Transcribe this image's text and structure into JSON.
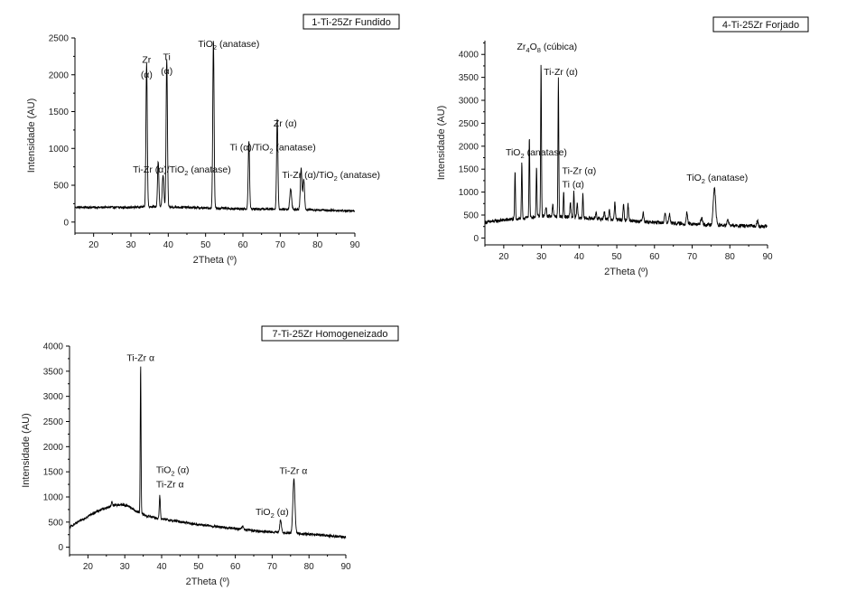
{
  "chart_data": [
    {
      "type": "line",
      "title": "1-Ti-25Zr Fundido",
      "xlabel": "2Theta (º)",
      "ylabel": "Intensidade (AU)",
      "xlim": [
        15,
        90
      ],
      "ylim": [
        -150,
        2500
      ],
      "xticks": [
        20,
        30,
        40,
        50,
        60,
        70,
        80,
        90
      ],
      "yticks": [
        0,
        500,
        1000,
        1500,
        2000,
        2500
      ],
      "baseline": [
        [
          15,
          200
        ],
        [
          30,
          200
        ],
        [
          35,
          210
        ],
        [
          40,
          205
        ],
        [
          45,
          200
        ],
        [
          50,
          190
        ],
        [
          55,
          185
        ],
        [
          60,
          180
        ],
        [
          70,
          175
        ],
        [
          80,
          165
        ],
        [
          90,
          150
        ]
      ],
      "noise": 15,
      "peaks": [
        {
          "x": 34.2,
          "y": 1950,
          "w": 0.25
        },
        {
          "x": 37.3,
          "y": 620,
          "w": 0.25
        },
        {
          "x": 38.6,
          "y": 440,
          "w": 0.3
        },
        {
          "x": 39.6,
          "y": 2010,
          "w": 0.25
        },
        {
          "x": 52.1,
          "y": 2290,
          "w": 0.25
        },
        {
          "x": 61.6,
          "y": 920,
          "w": 0.25
        },
        {
          "x": 69.2,
          "y": 1230,
          "w": 0.25
        },
        {
          "x": 72.8,
          "y": 270,
          "w": 0.35
        },
        {
          "x": 75.6,
          "y": 560,
          "w": 0.3
        },
        {
          "x": 76.3,
          "y": 420,
          "w": 0.3
        }
      ],
      "annotations": [
        {
          "text": "Zr",
          "x": 34.2,
          "y": 2160,
          "anchor": "middle"
        },
        {
          "text": "(α)",
          "x": 34.2,
          "y": 1960,
          "anchor": "middle"
        },
        {
          "text": "Ti",
          "x": 39.6,
          "y": 2200,
          "anchor": "middle"
        },
        {
          "text": "(α)",
          "x": 39.6,
          "y": 2010,
          "anchor": "middle"
        },
        {
          "text": "TiO",
          "sub": "2",
          "rest": " (anatase)",
          "x": 48,
          "y": 2380,
          "anchor": "start"
        },
        {
          "text": "Zr (α)",
          "x": 68.2,
          "y": 1300,
          "anchor": "start"
        },
        {
          "text": "Ti (α)/TiO",
          "sub": "2",
          "rest": " (anatase)",
          "x": 56.5,
          "y": 970,
          "anchor": "start"
        },
        {
          "text": "Ti-Zr (α)/TiO",
          "sub": "2",
          "rest": " (anatase)",
          "x": 30.5,
          "y": 670,
          "anchor": "start"
        },
        {
          "text": "Ti-Zr (α)/TiO",
          "sub": "2",
          "rest": " (anatase)",
          "x": 70.5,
          "y": 600,
          "anchor": "start"
        }
      ]
    },
    {
      "type": "line",
      "title": "4-Ti-25Zr Forjado",
      "xlabel": "2Theta (º)",
      "ylabel": "Intensidade (AU)",
      "xlim": [
        15,
        90
      ],
      "ylim": [
        -150,
        4300
      ],
      "xticks": [
        20,
        30,
        40,
        50,
        60,
        70,
        80,
        90
      ],
      "yticks": [
        0,
        500,
        1000,
        1500,
        2000,
        2500,
        3000,
        3500,
        4000
      ],
      "baseline": [
        [
          15,
          340
        ],
        [
          20,
          390
        ],
        [
          25,
          430
        ],
        [
          30,
          480
        ],
        [
          35,
          470
        ],
        [
          40,
          440
        ],
        [
          50,
          400
        ],
        [
          60,
          340
        ],
        [
          70,
          300
        ],
        [
          80,
          270
        ],
        [
          90,
          250
        ]
      ],
      "noise": 40,
      "peaks": [
        {
          "x": 23.0,
          "y": 1050,
          "w": 0.15
        },
        {
          "x": 24.8,
          "y": 1200,
          "w": 0.15
        },
        {
          "x": 26.8,
          "y": 1750,
          "w": 0.15
        },
        {
          "x": 28.7,
          "y": 1100,
          "w": 0.15
        },
        {
          "x": 29.9,
          "y": 3330,
          "w": 0.15
        },
        {
          "x": 31.2,
          "y": 200,
          "w": 0.2
        },
        {
          "x": 33.0,
          "y": 250,
          "w": 0.2
        },
        {
          "x": 34.5,
          "y": 3000,
          "w": 0.15
        },
        {
          "x": 35.9,
          "y": 550,
          "w": 0.15
        },
        {
          "x": 37.7,
          "y": 300,
          "w": 0.2
        },
        {
          "x": 38.6,
          "y": 560,
          "w": 0.15
        },
        {
          "x": 39.5,
          "y": 300,
          "w": 0.2
        },
        {
          "x": 41.0,
          "y": 560,
          "w": 0.15
        },
        {
          "x": 44.5,
          "y": 150,
          "w": 0.2
        },
        {
          "x": 46.7,
          "y": 180,
          "w": 0.2
        },
        {
          "x": 48.0,
          "y": 200,
          "w": 0.2
        },
        {
          "x": 49.5,
          "y": 380,
          "w": 0.2
        },
        {
          "x": 51.8,
          "y": 330,
          "w": 0.2
        },
        {
          "x": 53.0,
          "y": 350,
          "w": 0.2
        },
        {
          "x": 57.0,
          "y": 200,
          "w": 0.25
        },
        {
          "x": 62.8,
          "y": 220,
          "w": 0.25
        },
        {
          "x": 64.0,
          "y": 200,
          "w": 0.25
        },
        {
          "x": 68.6,
          "y": 260,
          "w": 0.25
        },
        {
          "x": 72.5,
          "y": 150,
          "w": 0.3
        },
        {
          "x": 75.9,
          "y": 800,
          "w": 0.45
        },
        {
          "x": 79.5,
          "y": 120,
          "w": 0.3
        },
        {
          "x": 87.3,
          "y": 120,
          "w": 0.3
        }
      ],
      "annotations": [
        {
          "text": "Zr",
          "sub": "4",
          "mid": "O",
          "sub2": "8",
          "rest": " (cúbica)",
          "x": 23.5,
          "y": 4100,
          "anchor": "start"
        },
        {
          "text": "Ti-Zr (α)",
          "x": 30.6,
          "y": 3550,
          "anchor": "start"
        },
        {
          "text": "TiO",
          "sub": "2",
          "rest": " (anatase)",
          "x": 20.5,
          "y": 1800,
          "anchor": "start"
        },
        {
          "text": "Ti-Zr (α)",
          "x": 35.5,
          "y": 1400,
          "anchor": "start"
        },
        {
          "text": "Ti (α)",
          "x": 35.5,
          "y": 1100,
          "anchor": "start"
        },
        {
          "text": "TiO",
          "sub": "2",
          "rest": " (anatase)",
          "x": 68.5,
          "y": 1250,
          "anchor": "start"
        }
      ]
    },
    {
      "type": "line",
      "title": "7-Ti-25Zr Homogeneizado",
      "xlabel": "2Theta (º)",
      "ylabel": "Intensidade (AU)",
      "xlim": [
        15,
        90
      ],
      "ylim": [
        -150,
        4000
      ],
      "xticks": [
        20,
        30,
        40,
        50,
        60,
        70,
        80,
        90
      ],
      "yticks": [
        0,
        500,
        1000,
        1500,
        2000,
        2500,
        3000,
        3500,
        4000
      ],
      "baseline": [
        [
          15,
          400
        ],
        [
          18,
          530
        ],
        [
          21,
          660
        ],
        [
          24,
          760
        ],
        [
          27,
          830
        ],
        [
          29,
          850
        ],
        [
          31,
          820
        ],
        [
          33,
          720
        ],
        [
          36,
          620
        ],
        [
          40,
          560
        ],
        [
          45,
          510
        ],
        [
          50,
          450
        ],
        [
          55,
          410
        ],
        [
          60,
          370
        ],
        [
          65,
          330
        ],
        [
          70,
          300
        ],
        [
          80,
          260
        ],
        [
          90,
          200
        ]
      ],
      "noise": 25,
      "peaks": [
        {
          "x": 26.5,
          "y": 100,
          "w": 0.2
        },
        {
          "x": 34.3,
          "y": 2950,
          "w": 0.15
        },
        {
          "x": 39.5,
          "y": 460,
          "w": 0.2
        },
        {
          "x": 62.0,
          "y": 60,
          "w": 0.3
        },
        {
          "x": 72.3,
          "y": 260,
          "w": 0.3
        },
        {
          "x": 75.9,
          "y": 1080,
          "w": 0.4
        }
      ],
      "annotations": [
        {
          "text": "Ti-Zr α",
          "x": 34.3,
          "y": 3700,
          "anchor": "middle"
        },
        {
          "text": "TiO",
          "sub": "2",
          "rest": " (α)",
          "x": 38.5,
          "y": 1480,
          "anchor": "start"
        },
        {
          "text": "Ti-Zr α",
          "x": 38.5,
          "y": 1190,
          "anchor": "start"
        },
        {
          "text": "TiO",
          "sub": "2",
          "rest": " (α)",
          "x": 65.5,
          "y": 640,
          "anchor": "start"
        },
        {
          "text": "Ti-Zr α",
          "x": 72.0,
          "y": 1460,
          "anchor": "start"
        }
      ]
    }
  ]
}
